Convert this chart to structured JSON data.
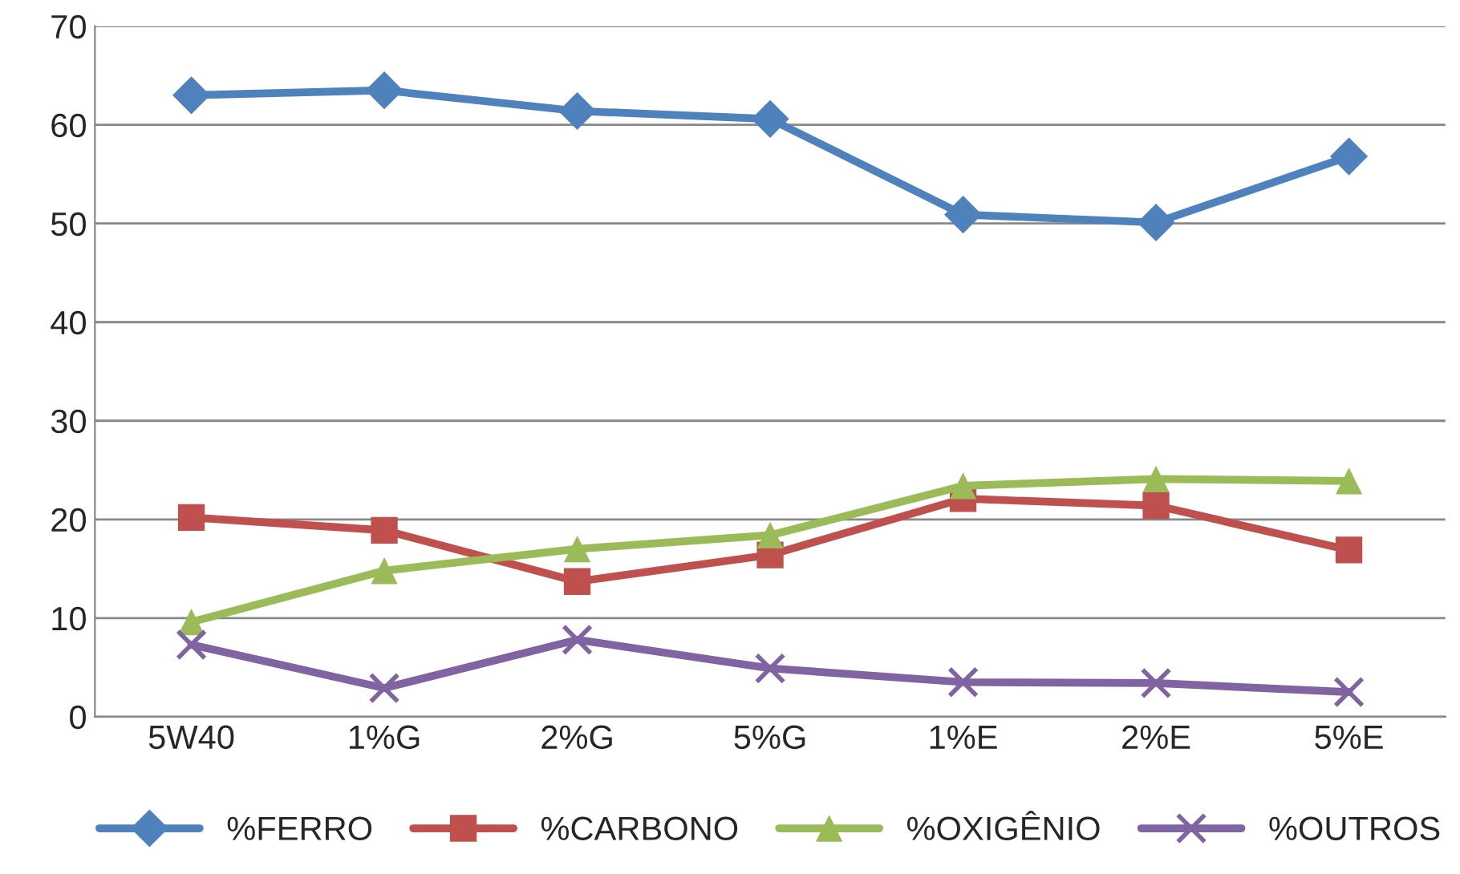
{
  "chart_data": {
    "type": "line",
    "categories": [
      "5W40",
      "1%G",
      "2%G",
      "5%G",
      "1%E",
      "2%E",
      "5%E"
    ],
    "series": [
      {
        "name": "%FERRO",
        "color": "#4f81bd",
        "marker": "diamond",
        "values": [
          63.0,
          63.5,
          61.4,
          60.6,
          50.9,
          50.1,
          56.8
        ]
      },
      {
        "name": "%CARBONO",
        "color": "#c0504d",
        "marker": "square",
        "values": [
          20.2,
          18.9,
          13.7,
          16.4,
          22.1,
          21.4,
          16.9
        ]
      },
      {
        "name": "%OXIGÊNIO",
        "color": "#9bbb59",
        "marker": "triangle",
        "values": [
          9.6,
          14.8,
          17.0,
          18.4,
          23.4,
          24.1,
          23.9
        ]
      },
      {
        "name": "%OUTROS",
        "color": "#8064a2",
        "marker": "cross",
        "values": [
          7.3,
          2.9,
          7.8,
          4.9,
          3.5,
          3.4,
          2.5
        ]
      }
    ],
    "ylim": [
      0,
      70
    ],
    "yticks": [
      0,
      10,
      20,
      30,
      40,
      50,
      60,
      70
    ],
    "grid": "y",
    "legend": "bottom"
  }
}
